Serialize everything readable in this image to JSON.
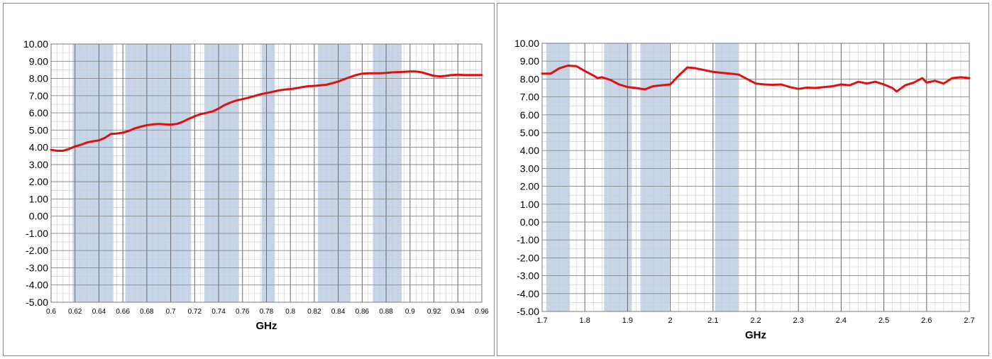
{
  "chart_data": [
    {
      "type": "line",
      "title": "",
      "xlabel": "GHz",
      "ylabel": "",
      "xlim": [
        0.6,
        0.96
      ],
      "ylim": [
        -5,
        10
      ],
      "x_tick_labels": [
        "0.6",
        "0.62",
        "0.64",
        "0.66",
        "0.68",
        "0.7",
        "0.72",
        "0.74",
        "0.76",
        "0.78",
        "0.8",
        "0.82",
        "0.84",
        "0.86",
        "0.88",
        "0.9",
        "0.92",
        "0.94",
        "0.96"
      ],
      "y_tick_labels": [
        "10.00",
        "9.00",
        "8.00",
        "7.00",
        "6.00",
        "5.00",
        "4.00",
        "3.00",
        "2.00",
        "1.00",
        "0.00",
        "-1.00",
        "-2.00",
        "-3.00",
        "-4.00",
        "-5.00"
      ],
      "grid": true,
      "line_color": "#dd1111",
      "highlight_color": "#c7d5e8",
      "highlight_bands": [
        [
          0.618,
          0.652
        ],
        [
          0.662,
          0.717
        ],
        [
          0.728,
          0.757
        ],
        [
          0.776,
          0.787
        ],
        [
          0.823,
          0.85
        ],
        [
          0.869,
          0.893
        ]
      ],
      "series": [
        {
          "x": [
            0.6,
            0.605,
            0.61,
            0.615,
            0.62,
            0.625,
            0.63,
            0.635,
            0.64,
            0.645,
            0.65,
            0.655,
            0.66,
            0.665,
            0.67,
            0.675,
            0.68,
            0.685,
            0.69,
            0.695,
            0.7,
            0.705,
            0.71,
            0.715,
            0.72,
            0.725,
            0.73,
            0.735,
            0.74,
            0.745,
            0.75,
            0.755,
            0.76,
            0.765,
            0.77,
            0.775,
            0.78,
            0.785,
            0.79,
            0.795,
            0.8,
            0.805,
            0.81,
            0.815,
            0.82,
            0.825,
            0.83,
            0.835,
            0.84,
            0.845,
            0.85,
            0.855,
            0.86,
            0.865,
            0.87,
            0.875,
            0.88,
            0.885,
            0.89,
            0.895,
            0.9,
            0.905,
            0.91,
            0.915,
            0.92,
            0.925,
            0.93,
            0.935,
            0.94,
            0.945,
            0.95,
            0.955,
            0.96
          ],
          "y": [
            3.85,
            3.8,
            3.8,
            3.9,
            4.05,
            4.15,
            4.28,
            4.35,
            4.4,
            4.55,
            4.78,
            4.8,
            4.85,
            4.95,
            5.1,
            5.2,
            5.28,
            5.33,
            5.35,
            5.33,
            5.32,
            5.35,
            5.48,
            5.65,
            5.8,
            5.93,
            6.0,
            6.08,
            6.25,
            6.45,
            6.6,
            6.72,
            6.8,
            6.88,
            6.98,
            7.08,
            7.15,
            7.22,
            7.3,
            7.35,
            7.38,
            7.43,
            7.5,
            7.55,
            7.57,
            7.6,
            7.63,
            7.72,
            7.82,
            7.95,
            8.08,
            8.2,
            8.28,
            8.3,
            8.3,
            8.3,
            8.32,
            8.35,
            8.37,
            8.38,
            8.4,
            8.4,
            8.35,
            8.25,
            8.15,
            8.12,
            8.15,
            8.2,
            8.22,
            8.2,
            8.2,
            8.2,
            8.2
          ]
        }
      ]
    },
    {
      "type": "line",
      "title": "",
      "xlabel": "GHz",
      "ylabel": "",
      "xlim": [
        1.7,
        2.7
      ],
      "ylim": [
        -5,
        10
      ],
      "x_tick_labels": [
        "1.7",
        "1.8",
        "1.9",
        "2",
        "2.1",
        "2.2",
        "2.3",
        "2.4",
        "2.5",
        "2.6",
        "2.7"
      ],
      "y_tick_labels": [
        "10.00",
        "9.00",
        "8.00",
        "7.00",
        "6.00",
        "5.00",
        "4.00",
        "3.00",
        "2.00",
        "1.00",
        "0.00",
        "-1.00",
        "-2.00",
        "-3.00",
        "-4.00",
        "-5.00"
      ],
      "grid": true,
      "line_color": "#dd1111",
      "highlight_color": "#c7d5e8",
      "highlight_bands": [
        [
          1.71,
          1.765
        ],
        [
          1.845,
          1.91
        ],
        [
          1.93,
          1.998
        ],
        [
          2.105,
          2.16
        ]
      ],
      "series": [
        {
          "x": [
            1.7,
            1.72,
            1.74,
            1.76,
            1.78,
            1.8,
            1.82,
            1.83,
            1.84,
            1.86,
            1.88,
            1.9,
            1.92,
            1.94,
            1.96,
            1.98,
            2.0,
            2.02,
            2.04,
            2.06,
            2.08,
            2.1,
            2.12,
            2.14,
            2.16,
            2.18,
            2.2,
            2.22,
            2.24,
            2.26,
            2.28,
            2.3,
            2.32,
            2.34,
            2.36,
            2.38,
            2.4,
            2.42,
            2.44,
            2.46,
            2.48,
            2.5,
            2.52,
            2.53,
            2.55,
            2.57,
            2.59,
            2.6,
            2.62,
            2.64,
            2.66,
            2.68,
            2.7
          ],
          "y": [
            8.3,
            8.3,
            8.6,
            8.75,
            8.72,
            8.45,
            8.2,
            8.05,
            8.1,
            7.95,
            7.7,
            7.55,
            7.5,
            7.42,
            7.6,
            7.65,
            7.7,
            8.2,
            8.65,
            8.6,
            8.5,
            8.4,
            8.35,
            8.3,
            8.25,
            8.0,
            7.75,
            7.7,
            7.68,
            7.7,
            7.55,
            7.45,
            7.52,
            7.5,
            7.55,
            7.6,
            7.7,
            7.65,
            7.85,
            7.75,
            7.85,
            7.7,
            7.5,
            7.3,
            7.65,
            7.8,
            8.05,
            7.8,
            7.9,
            7.75,
            8.05,
            8.1,
            8.05
          ]
        }
      ]
    }
  ]
}
